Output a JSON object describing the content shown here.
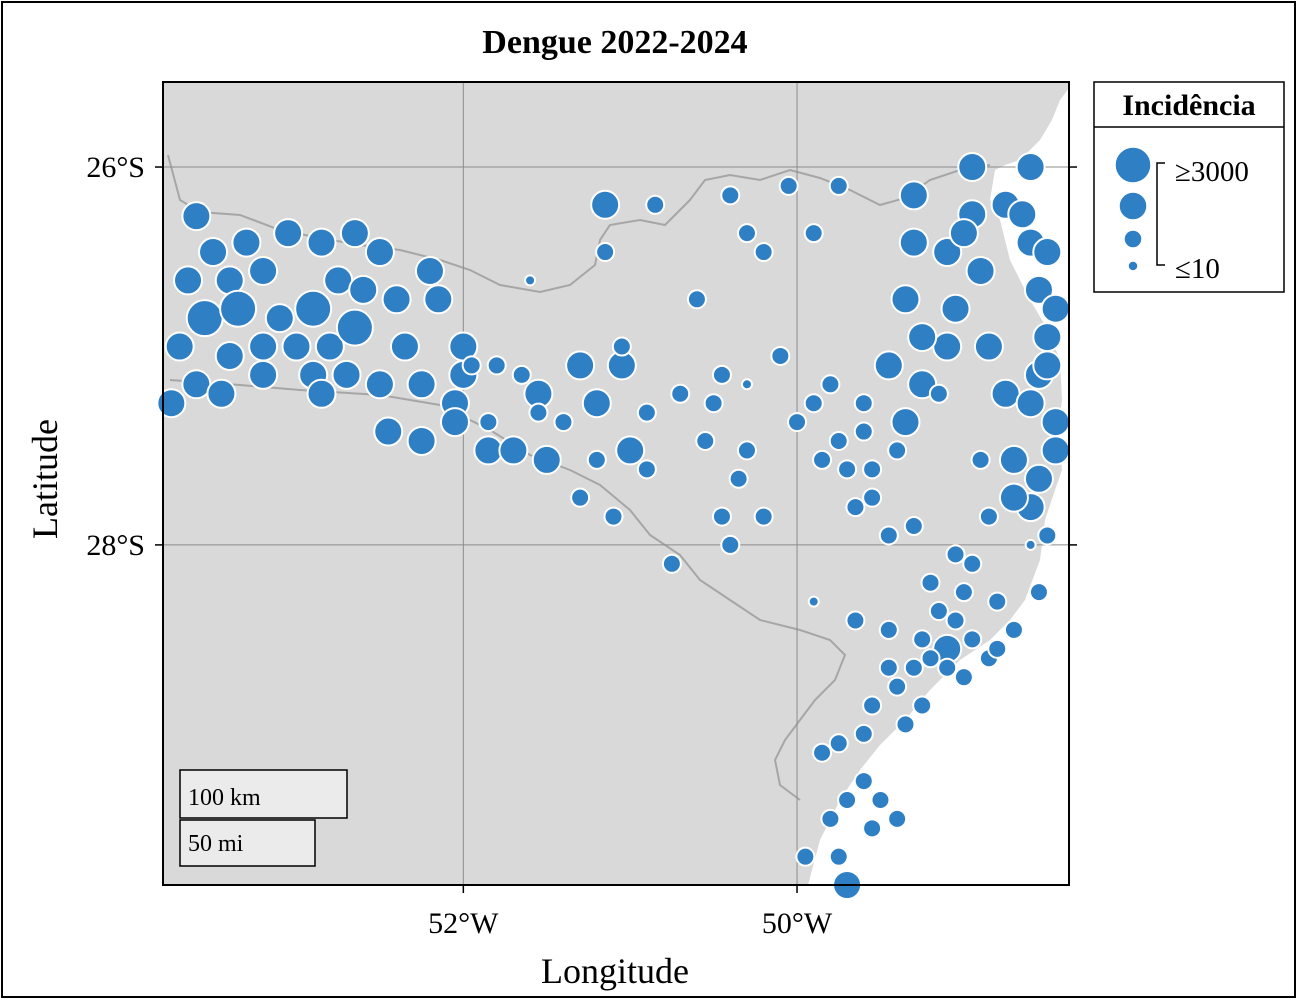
{
  "title": "Dengue 2022-2024",
  "axes": {
    "x_label": "Longitude",
    "y_label": "Latitude",
    "x_ticks": [
      {
        "value": -52,
        "label": "52°W"
      },
      {
        "value": -50,
        "label": "50°W"
      }
    ],
    "y_ticks": [
      {
        "value": -26,
        "label": "26°S"
      },
      {
        "value": -28,
        "label": "28°S"
      }
    ],
    "grid": true
  },
  "legend": {
    "title": "Incidência",
    "max_label": "≥3000",
    "min_label": "≤10",
    "placement": "right-top"
  },
  "scale_bar": {
    "km_label": "100 km",
    "mi_label": "50 mi"
  },
  "colors": {
    "point": "#2f7fc4",
    "point_stroke": "#ffffff",
    "land": "#d9d9d9",
    "sea": "#ffffff",
    "border": "#a6a6a6",
    "grid": "#8c8c8c"
  },
  "chart_data": {
    "type": "scatter",
    "title": "Dengue 2022-2024",
    "xlabel": "Longitude",
    "ylabel": "Latitude",
    "xlim": [
      -53.8,
      -48.37
    ],
    "ylim": [
      -29.8,
      -25.55
    ],
    "size_variable": "Incidência",
    "size_classes": [
      1,
      2,
      3,
      4
    ],
    "points": [
      [
        -53.6,
        -26.26,
        3
      ],
      [
        -53.5,
        -26.45,
        3
      ],
      [
        -53.65,
        -26.6,
        3
      ],
      [
        -53.4,
        -26.6,
        3
      ],
      [
        -53.55,
        -26.8,
        4
      ],
      [
        -53.35,
        -26.75,
        4
      ],
      [
        -53.7,
        -26.95,
        3
      ],
      [
        -53.4,
        -27.0,
        3
      ],
      [
        -53.6,
        -27.15,
        3
      ],
      [
        -53.2,
        -27.1,
        3
      ],
      [
        -53.1,
        -26.8,
        3
      ],
      [
        -53.2,
        -26.55,
        3
      ],
      [
        -53.05,
        -26.35,
        3
      ],
      [
        -52.85,
        -26.4,
        3
      ],
      [
        -52.75,
        -26.6,
        3
      ],
      [
        -52.9,
        -26.75,
        4
      ],
      [
        -52.8,
        -26.95,
        3
      ],
      [
        -52.65,
        -26.85,
        4
      ],
      [
        -52.65,
        -26.35,
        3
      ],
      [
        -52.5,
        -26.45,
        3
      ],
      [
        -52.4,
        -26.7,
        3
      ],
      [
        -52.35,
        -26.95,
        3
      ],
      [
        -52.15,
        -26.7,
        3
      ],
      [
        -52.2,
        -26.55,
        3
      ],
      [
        -52.5,
        -27.15,
        3
      ],
      [
        -52.9,
        -27.1,
        3
      ],
      [
        -53.0,
        -26.95,
        3
      ],
      [
        -53.2,
        -26.95,
        3
      ],
      [
        -53.45,
        -27.2,
        3
      ],
      [
        -53.75,
        -27.25,
        3
      ],
      [
        -52.45,
        -27.4,
        3
      ],
      [
        -52.25,
        -27.45,
        3
      ],
      [
        -52.05,
        -27.25,
        3
      ],
      [
        -52.0,
        -27.1,
        3
      ],
      [
        -52.0,
        -26.95,
        3
      ],
      [
        -52.85,
        -27.2,
        3
      ],
      [
        -52.7,
        -27.1,
        3
      ],
      [
        -53.3,
        -26.4,
        3
      ],
      [
        -52.6,
        -26.65,
        3
      ],
      [
        -52.25,
        -27.15,
        3
      ],
      [
        -52.05,
        -27.35,
        3
      ],
      [
        -51.85,
        -27.5,
        3
      ],
      [
        -51.7,
        -27.5,
        3
      ],
      [
        -51.5,
        -27.55,
        3
      ],
      [
        -51.55,
        -27.2,
        3
      ],
      [
        -51.3,
        -27.05,
        3
      ],
      [
        -51.2,
        -27.25,
        3
      ],
      [
        -51.05,
        -27.05,
        3
      ],
      [
        -51.0,
        -27.5,
        3
      ],
      [
        -51.15,
        -26.2,
        3
      ],
      [
        -50.7,
        -27.2,
        2
      ],
      [
        -50.5,
        -27.25,
        2
      ],
      [
        -50.45,
        -27.1,
        2
      ],
      [
        -50.55,
        -27.45,
        2
      ],
      [
        -50.35,
        -27.65,
        2
      ],
      [
        -50.2,
        -27.85,
        2
      ],
      [
        -50.3,
        -27.5,
        2
      ],
      [
        -50.0,
        -27.35,
        2
      ],
      [
        -49.8,
        -27.15,
        2
      ],
      [
        -49.75,
        -27.45,
        2
      ],
      [
        -49.6,
        -27.25,
        2
      ],
      [
        -49.55,
        -27.6,
        2
      ],
      [
        -49.45,
        -27.05,
        3
      ],
      [
        -49.35,
        -27.35,
        3
      ],
      [
        -49.25,
        -27.15,
        3
      ],
      [
        -49.1,
        -26.95,
        3
      ],
      [
        -49.05,
        -26.75,
        3
      ],
      [
        -49.25,
        -26.9,
        3
      ],
      [
        -49.35,
        -26.7,
        3
      ],
      [
        -49.3,
        -26.4,
        3
      ],
      [
        -49.1,
        -26.45,
        3
      ],
      [
        -48.95,
        -26.25,
        3
      ],
      [
        -48.9,
        -26.55,
        3
      ],
      [
        -48.85,
        -26.95,
        3
      ],
      [
        -48.75,
        -27.2,
        3
      ],
      [
        -48.7,
        -27.55,
        3
      ],
      [
        -48.6,
        -27.8,
        3
      ],
      [
        -48.45,
        -27.35,
        3
      ],
      [
        -48.55,
        -27.1,
        3
      ],
      [
        -48.5,
        -26.9,
        3
      ],
      [
        -48.55,
        -26.65,
        3
      ],
      [
        -48.6,
        -26.4,
        3
      ],
      [
        -48.75,
        -26.2,
        3
      ],
      [
        -48.95,
        -26.0,
        3
      ],
      [
        -48.6,
        -26.0,
        3
      ],
      [
        -48.65,
        -26.25,
        3
      ],
      [
        -48.5,
        -26.45,
        3
      ],
      [
        -48.45,
        -26.75,
        3
      ],
      [
        -48.5,
        -27.05,
        3
      ],
      [
        -48.6,
        -27.25,
        3
      ],
      [
        -48.45,
        -27.5,
        3
      ],
      [
        -48.55,
        -27.65,
        3
      ],
      [
        -48.7,
        -27.75,
        3
      ],
      [
        -48.5,
        -27.95,
        2
      ],
      [
        -49.3,
        -26.15,
        3
      ],
      [
        -49.0,
        -26.35,
        3
      ],
      [
        -49.15,
        -27.2,
        2
      ],
      [
        -49.4,
        -27.5,
        2
      ],
      [
        -49.6,
        -27.4,
        2
      ],
      [
        -49.9,
        -27.25,
        2
      ],
      [
        -50.45,
        -27.85,
        2
      ],
      [
        -50.1,
        -27.0,
        2
      ],
      [
        -50.6,
        -26.7,
        2
      ],
      [
        -50.4,
        -26.15,
        2
      ],
      [
        -50.3,
        -26.35,
        2
      ],
      [
        -50.2,
        -26.45,
        2
      ],
      [
        -50.05,
        -26.1,
        2
      ],
      [
        -49.9,
        -26.35,
        2
      ],
      [
        -49.75,
        -26.1,
        2
      ],
      [
        -50.85,
        -26.2,
        2
      ],
      [
        -51.15,
        -26.45,
        2
      ],
      [
        -51.05,
        -26.95,
        2
      ],
      [
        -50.9,
        -27.3,
        2
      ],
      [
        -51.2,
        -27.55,
        2
      ],
      [
        -51.3,
        -27.75,
        2
      ],
      [
        -51.1,
        -27.85,
        2
      ],
      [
        -50.9,
        -27.6,
        2
      ],
      [
        -50.75,
        -28.1,
        2
      ],
      [
        -50.4,
        -28.0,
        2
      ],
      [
        -51.55,
        -27.3,
        2
      ],
      [
        -51.65,
        -27.1,
        2
      ],
      [
        -51.8,
        -27.05,
        2
      ],
      [
        -51.95,
        -27.05,
        2
      ],
      [
        -51.4,
        -27.35,
        2
      ],
      [
        -49.85,
        -27.55,
        2
      ],
      [
        -49.7,
        -27.6,
        2
      ],
      [
        -49.65,
        -27.8,
        2
      ],
      [
        -49.55,
        -27.75,
        2
      ],
      [
        -49.45,
        -27.95,
        2
      ],
      [
        -49.3,
        -27.9,
        2
      ],
      [
        -49.2,
        -28.2,
        2
      ],
      [
        -49.15,
        -28.35,
        2
      ],
      [
        -49.05,
        -28.4,
        2
      ],
      [
        -48.95,
        -28.5,
        2
      ],
      [
        -49.1,
        -28.55,
        3
      ],
      [
        -48.85,
        -28.6,
        2
      ],
      [
        -48.8,
        -28.55,
        2
      ],
      [
        -49.0,
        -28.7,
        2
      ],
      [
        -49.2,
        -28.6,
        2
      ],
      [
        -49.3,
        -28.65,
        2
      ],
      [
        -49.45,
        -28.65,
        2
      ],
      [
        -49.4,
        -28.75,
        2
      ],
      [
        -49.25,
        -28.85,
        2
      ],
      [
        -49.35,
        -28.95,
        2
      ],
      [
        -49.55,
        -28.85,
        2
      ],
      [
        -49.6,
        -29.0,
        2
      ],
      [
        -49.75,
        -29.05,
        2
      ],
      [
        -49.85,
        -29.1,
        2
      ],
      [
        -49.6,
        -29.25,
        2
      ],
      [
        -49.7,
        -29.35,
        2
      ],
      [
        -49.5,
        -29.35,
        2
      ],
      [
        -49.4,
        -29.45,
        2
      ],
      [
        -49.8,
        -29.45,
        2
      ],
      [
        -49.55,
        -29.5,
        2
      ],
      [
        -49.95,
        -29.65,
        2
      ],
      [
        -49.75,
        -29.65,
        2
      ],
      [
        -49.7,
        -29.8,
        3
      ],
      [
        -49.9,
        -28.3,
        1
      ],
      [
        -49.65,
        -28.4,
        2
      ],
      [
        -49.45,
        -28.45,
        2
      ],
      [
        -49.25,
        -28.5,
        2
      ],
      [
        -49.1,
        -28.65,
        2
      ],
      [
        -49.0,
        -28.25,
        2
      ],
      [
        -48.95,
        -28.1,
        2
      ],
      [
        -48.8,
        -28.3,
        2
      ],
      [
        -48.7,
        -28.45,
        2
      ],
      [
        -48.55,
        -28.25,
        2
      ],
      [
        -48.9,
        -27.55,
        2
      ],
      [
        -48.85,
        -27.85,
        2
      ],
      [
        -49.05,
        -28.05,
        2
      ],
      [
        -48.6,
        -28.0,
        1
      ],
      [
        -51.6,
        -26.6,
        1
      ],
      [
        -51.85,
        -27.35,
        2
      ],
      [
        -50.3,
        -27.15,
        1
      ]
    ]
  }
}
